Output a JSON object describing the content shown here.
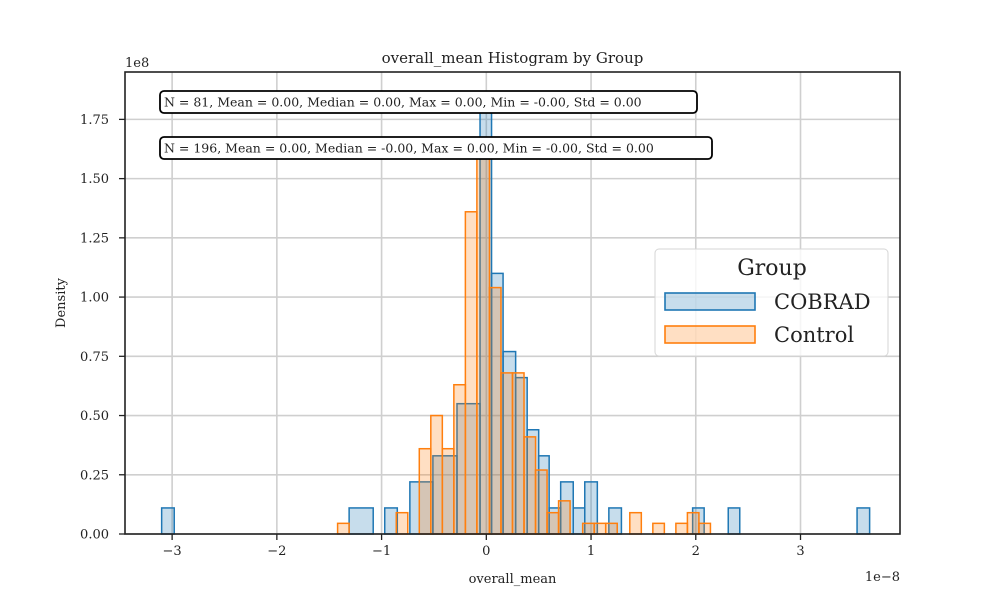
{
  "chart_data": {
    "type": "histogram",
    "title": "overall_mean Histogram by Group",
    "xlabel": "overall_mean",
    "ylabel": "Density",
    "x_offset_label": "1e−8",
    "y_offset_label": "1e8",
    "x_scale": 1e-08,
    "y_scale": 100000000.0,
    "xlim": [
      -3.45,
      3.95
    ],
    "ylim": [
      0,
      1.95
    ],
    "xticks": [
      -3,
      -2,
      -1,
      0,
      1,
      2,
      3
    ],
    "xtick_labels": [
      "−3",
      "−2",
      "−1",
      "0",
      "1",
      "2",
      "3"
    ],
    "yticks": [
      0,
      0.25,
      0.5,
      0.75,
      1.0,
      1.25,
      1.5,
      1.75
    ],
    "ytick_labels": [
      "0.00",
      "0.25",
      "0.50",
      "0.75",
      "1.00",
      "1.25",
      "1.50",
      "1.75"
    ],
    "grid": true,
    "legend": {
      "title": "Group",
      "placement": "center-right",
      "entries": [
        "COBRAD",
        "Control"
      ]
    },
    "series": [
      {
        "name": "COBRAD",
        "color": "#1f77b4",
        "fill": "rgba(31,119,180,0.25)",
        "bins": [
          [
            -3.1,
            -2.98,
            0.11
          ],
          [
            -1.31,
            -1.08,
            0.11
          ],
          [
            -0.97,
            -0.85,
            0.11
          ],
          [
            -0.73,
            -0.51,
            0.22
          ],
          [
            -0.51,
            -0.28,
            0.33
          ],
          [
            -0.28,
            -0.06,
            0.55
          ],
          [
            -0.06,
            0.05,
            1.8
          ],
          [
            0.05,
            0.16,
            1.1
          ],
          [
            0.16,
            0.28,
            0.77
          ],
          [
            0.28,
            0.39,
            0.66
          ],
          [
            0.39,
            0.5,
            0.44
          ],
          [
            0.5,
            0.6,
            0.33
          ],
          [
            0.6,
            0.71,
            0.11
          ],
          [
            0.71,
            0.83,
            0.22
          ],
          [
            0.83,
            0.94,
            0.11
          ],
          [
            0.94,
            1.06,
            0.22
          ],
          [
            1.17,
            1.29,
            0.11
          ],
          [
            1.97,
            2.08,
            0.11
          ],
          [
            2.31,
            2.42,
            0.11
          ],
          [
            3.54,
            3.66,
            0.11
          ]
        ]
      },
      {
        "name": "Control",
        "color": "#ff7f0e",
        "fill": "rgba(255,127,14,0.25)",
        "bins": [
          [
            -1.42,
            -1.31,
            0.045
          ],
          [
            -0.86,
            -0.75,
            0.09
          ],
          [
            -0.64,
            -0.53,
            0.36
          ],
          [
            -0.53,
            -0.42,
            0.5
          ],
          [
            -0.42,
            -0.31,
            0.36
          ],
          [
            -0.31,
            -0.2,
            0.63
          ],
          [
            -0.2,
            -0.09,
            1.36
          ],
          [
            -0.09,
            0.03,
            1.63
          ],
          [
            0.03,
            0.14,
            1.04
          ],
          [
            0.14,
            0.25,
            0.68
          ],
          [
            0.25,
            0.36,
            0.68
          ],
          [
            0.36,
            0.47,
            0.41
          ],
          [
            0.47,
            0.58,
            0.27
          ],
          [
            0.58,
            0.69,
            0.09
          ],
          [
            0.69,
            0.8,
            0.14
          ],
          [
            0.92,
            1.03,
            0.045
          ],
          [
            1.03,
            1.14,
            0.045
          ],
          [
            1.14,
            1.25,
            0.045
          ],
          [
            1.37,
            1.48,
            0.09
          ],
          [
            1.59,
            1.7,
            0.045
          ],
          [
            1.81,
            1.92,
            0.045
          ],
          [
            1.92,
            2.03,
            0.09
          ],
          [
            2.03,
            2.14,
            0.045
          ]
        ]
      }
    ],
    "annotations": [
      "N = 81, Mean = 0.00, Median = 0.00, Max = 0.00, Min = -0.00, Std = 0.00",
      "N = 196, Mean = 0.00, Median = -0.00, Max = 0.00, Min = -0.00, Std = 0.00"
    ]
  }
}
